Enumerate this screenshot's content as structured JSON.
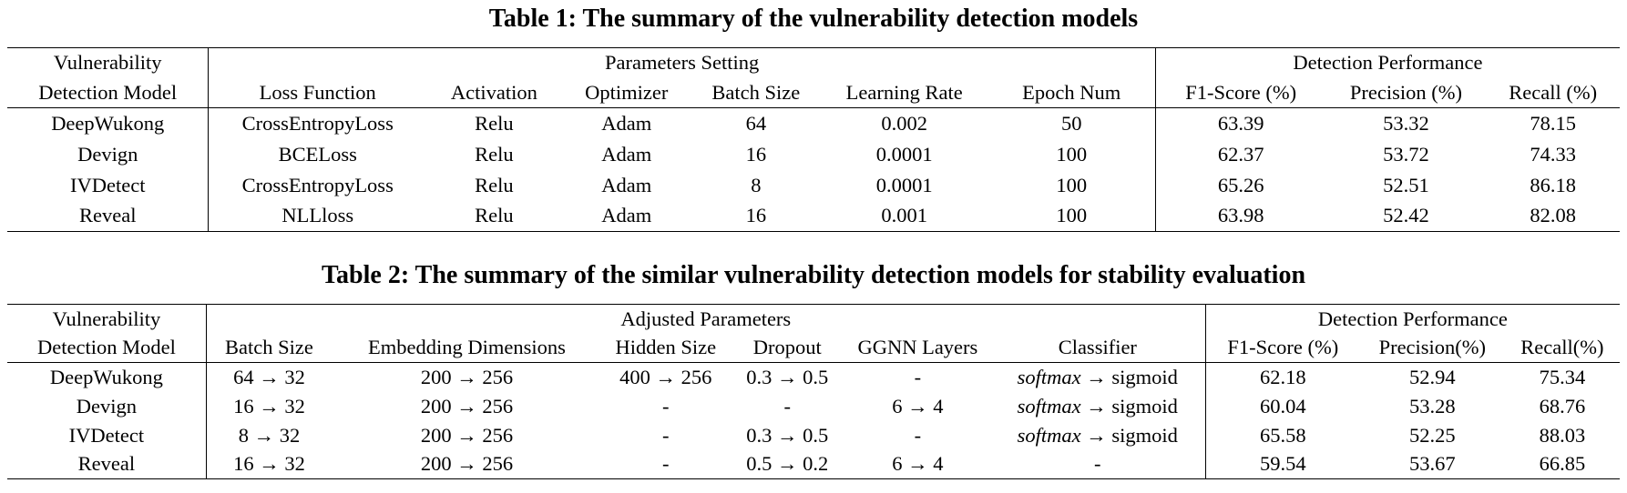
{
  "table1": {
    "title": "Table 1: The summary of the vulnerability detection models",
    "header_row1": [
      "Vulnerability",
      "Parameters Setting",
      "Detection Performance"
    ],
    "columns": [
      "Detection Model",
      "Loss Function",
      "Activation",
      "Optimizer",
      "Batch Size",
      "Learning Rate",
      "Epoch Num",
      "F1-Score (%)",
      "Precision (%)",
      "Recall (%)"
    ],
    "rows": [
      [
        "DeepWukong",
        "CrossEntropyLoss",
        "Relu",
        "Adam",
        "64",
        "0.002",
        "50",
        "63.39",
        "53.32",
        "78.15"
      ],
      [
        "Devign",
        "BCELoss",
        "Relu",
        "Adam",
        "16",
        "0.0001",
        "100",
        "62.37",
        "53.72",
        "74.33"
      ],
      [
        "IVDetect",
        "CrossEntropyLoss",
        "Relu",
        "Adam",
        "8",
        "0.0001",
        "100",
        "65.26",
        "52.51",
        "86.18"
      ],
      [
        "Reveal",
        "NLLloss",
        "Relu",
        "Adam",
        "16",
        "0.001",
        "100",
        "63.98",
        "52.42",
        "82.08"
      ]
    ]
  },
  "table2": {
    "title": "Table 2: The summary of the similar vulnerability detection models for stability evaluation",
    "header_row1": [
      "Vulnerability",
      "Adjusted Parameters",
      "Detection Performance"
    ],
    "columns": [
      "Detection Model",
      "Batch Size",
      "Embedding Dimensions",
      "Hidden Size",
      "Dropout",
      "GGNN Layers",
      "Classifier",
      "F1-Score (%)",
      "Precision(%)",
      "Recall(%)"
    ],
    "softmax_label": "softmax",
    "sigmoid_suffix": " → sigmoid",
    "rows": [
      [
        "DeepWukong",
        "64 → 32",
        "200 → 256",
        "400 → 256",
        "0.3 → 0.5",
        "-",
        "softmax → sigmoid",
        "62.18",
        "52.94",
        "75.34"
      ],
      [
        "Devign",
        "16 → 32",
        "200 → 256",
        "-",
        "-",
        "6 → 4",
        "softmax → sigmoid",
        "60.04",
        "53.28",
        "68.76"
      ],
      [
        "IVDetect",
        "8 → 32",
        "200 → 256",
        "-",
        "0.3 → 0.5",
        "-",
        "softmax → sigmoid",
        "65.58",
        "52.25",
        "88.03"
      ],
      [
        "Reveal",
        "16 → 32",
        "200 → 256",
        "-",
        "0.5 → 0.2",
        "6 → 4",
        "-",
        "59.54",
        "53.67",
        "66.85"
      ]
    ]
  }
}
